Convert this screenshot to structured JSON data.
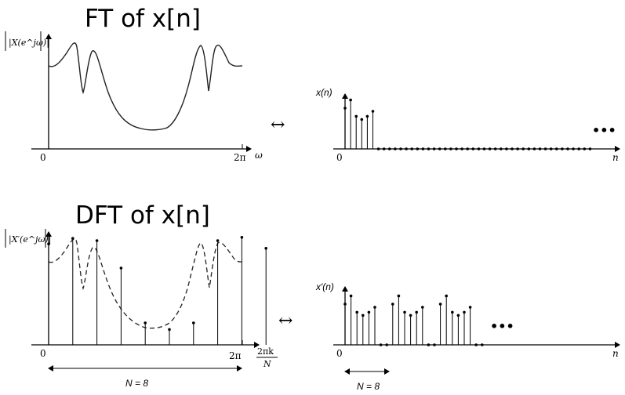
{
  "titles": {
    "ft": "FT of x[n]",
    "dft": "DFT of x[n]"
  },
  "top_left": {
    "ylabel": "|X(e^jω)|",
    "origin": "0",
    "tick_2pi": "2π",
    "xlabel": "ω"
  },
  "top_right": {
    "ylabel": "x(n)",
    "origin": "0",
    "xlabel": "n",
    "ellipsis": "•••"
  },
  "bottom_left": {
    "ylabel": "|X′(e^jω)|",
    "origin": "0",
    "tick_2pi": "2π",
    "xlabel_num": "2πk",
    "xlabel_den": "N",
    "span_label": "N = 8"
  },
  "bottom_right": {
    "ylabel": "x′(n)",
    "origin": "0",
    "xlabel": "n",
    "ellipsis": "•••",
    "span_label": "N = 8"
  },
  "arrow_symbol": "↔",
  "chart_data": [
    {
      "type": "line",
      "id": "ft-magnitude",
      "xlabel": "ω",
      "ylabel": "|X(e^jω)|",
      "x_ticks": [
        "0",
        "2π"
      ]
    },
    {
      "type": "stem",
      "id": "x-n",
      "xlabel": "n",
      "ylabel": "x(n)",
      "values": [
        0.65,
        0.78,
        0.52,
        0.47,
        0.52,
        0.6,
        0,
        0,
        0,
        0,
        0,
        0,
        0,
        0,
        0,
        0,
        0,
        0,
        0,
        0,
        0,
        0,
        0,
        0,
        0,
        0,
        0,
        0,
        0,
        0,
        0,
        0,
        0,
        0,
        0,
        0,
        0,
        0,
        0,
        0,
        0,
        0,
        0,
        0,
        0
      ]
    },
    {
      "type": "stem",
      "id": "dft-samples",
      "xlabel": "2πk/N",
      "ylabel": "|X′(e^jω)|",
      "N": 8,
      "x_ticks": [
        "0",
        "2π"
      ],
      "values": [
        0.92,
        0.97,
        0.95,
        0.7,
        0.2,
        0.14,
        0.2,
        0.95,
        0.98,
        0.88
      ]
    },
    {
      "type": "stem",
      "id": "x-prime-n",
      "xlabel": "n",
      "ylabel": "x′(n)",
      "N": 8,
      "values": [
        0.65,
        0.78,
        0.52,
        0.47,
        0.52,
        0.6,
        0,
        0,
        0.65,
        0.78,
        0.52,
        0.47,
        0.52,
        0.6,
        0,
        0,
        0.65,
        0.78,
        0.52,
        0.47,
        0.52,
        0.6,
        0,
        0
      ]
    }
  ]
}
